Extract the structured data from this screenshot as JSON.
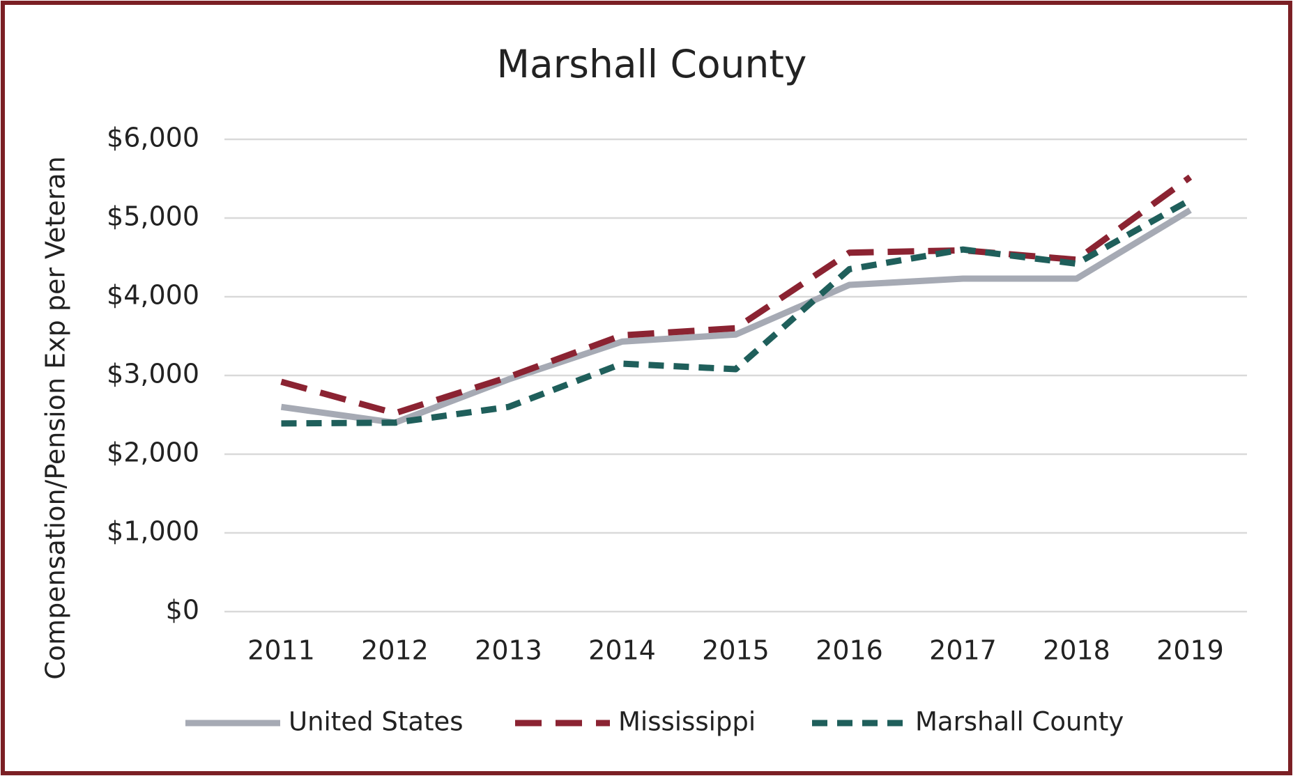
{
  "chart_data": {
    "type": "line",
    "title": "Marshall County",
    "y_label": "Compensation/Pension Exp per Veteran",
    "categories": [
      "2011",
      "2012",
      "2013",
      "2014",
      "2015",
      "2016",
      "2017",
      "2018",
      "2019"
    ],
    "series": [
      {
        "name": "United States",
        "color": "#a6aab4",
        "values": [
          2600,
          2400,
          2950,
          3430,
          3520,
          4150,
          4230,
          4230,
          5100
        ]
      },
      {
        "name": "Mississippi",
        "color": "#8b2332",
        "values": [
          2920,
          2520,
          2980,
          3510,
          3600,
          4560,
          4590,
          4470,
          5520
        ]
      },
      {
        "name": "Marshall County",
        "color": "#1f5f5b",
        "values": [
          2390,
          2400,
          2600,
          3150,
          3080,
          4350,
          4600,
          4420,
          5230
        ]
      }
    ],
    "ylim": [
      0,
      6000
    ],
    "yticks": [
      {
        "value": 0,
        "label": "$0"
      },
      {
        "value": 1000,
        "label": "$1,000"
      },
      {
        "value": 2000,
        "label": "$2,000"
      },
      {
        "value": 3000,
        "label": "$3,000"
      },
      {
        "value": 4000,
        "label": "$4,000"
      },
      {
        "value": 5000,
        "label": "$5,000"
      },
      {
        "value": 6000,
        "label": "$6,000"
      }
    ],
    "grid": true,
    "legend": "bottom"
  }
}
